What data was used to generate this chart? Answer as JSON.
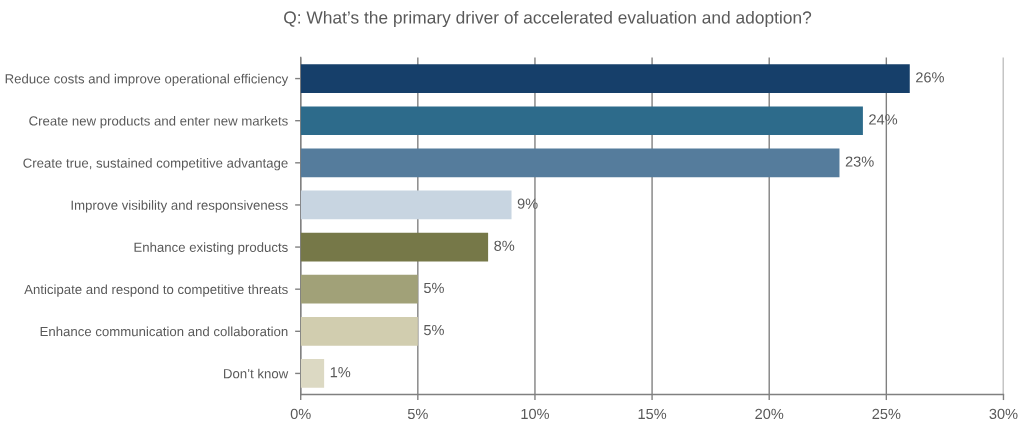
{
  "chart_data": {
    "type": "bar",
    "orientation": "horizontal",
    "title": "Q: What’s the primary driver of accelerated evaluation and adoption?",
    "categories": [
      "Reduce costs and improve operational efficiency",
      "Create new products and enter new markets",
      "Create true, sustained competitive advantage",
      "Improve visibility and responsiveness",
      "Enhance existing products",
      "Anticipate and respond to competitive threats",
      "Enhance communication and collaboration",
      "Don’t know"
    ],
    "values": [
      26,
      24,
      23,
      9,
      8,
      5,
      5,
      1
    ],
    "colors": [
      "#163f6a",
      "#2d6b8b",
      "#557c9c",
      "#c8d5e1",
      "#767848",
      "#a1a178",
      "#d1cdaf",
      "#dcd9c3"
    ],
    "value_labels": [
      "26%",
      "24%",
      "23%",
      "9%",
      "8%",
      "5%",
      "5%",
      "1%"
    ],
    "xlim": [
      0,
      30
    ],
    "xticks": [
      {
        "value": 0,
        "label": "0%"
      },
      {
        "value": 5,
        "label": "5%"
      },
      {
        "value": 10,
        "label": "10%"
      },
      {
        "value": 15,
        "label": "15%"
      },
      {
        "value": 20,
        "label": "20%"
      },
      {
        "value": 25,
        "label": "25%"
      },
      {
        "value": 30,
        "label": "30%"
      }
    ],
    "grid": "x",
    "legend": false
  }
}
